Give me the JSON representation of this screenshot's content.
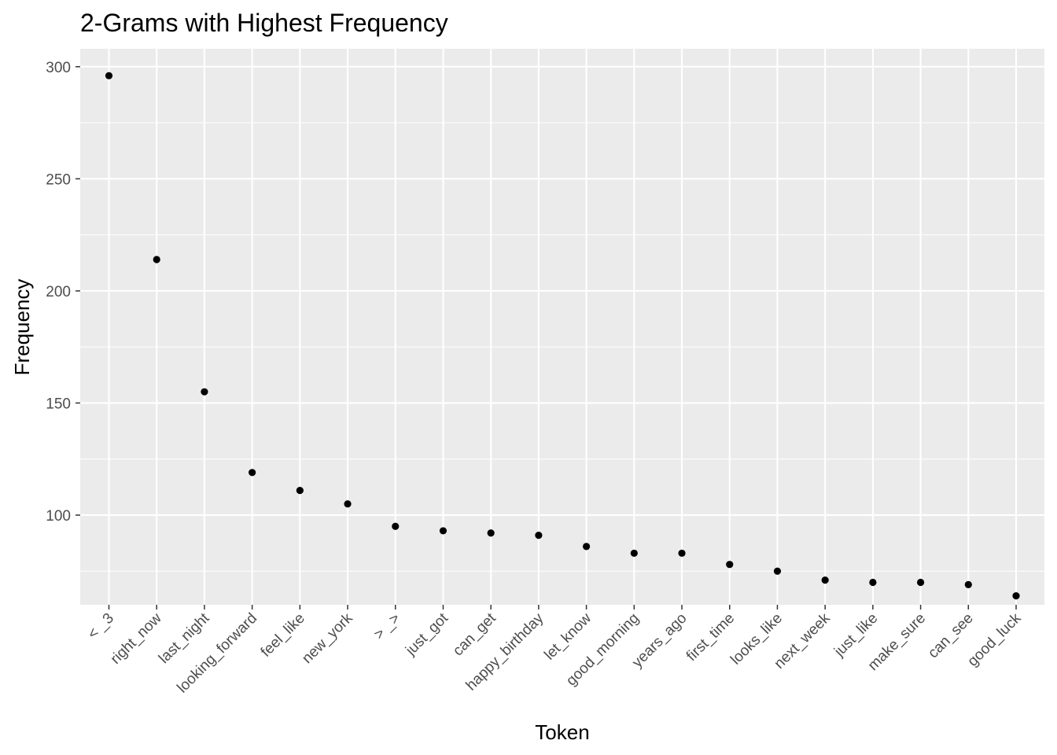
{
  "chart_data": {
    "type": "scatter",
    "title": "2-Grams with Highest Frequency",
    "xlabel": "Token",
    "ylabel": "Frequency",
    "categories": [
      "< _3",
      "right_now",
      "last_night",
      "looking_forward",
      "feel_like",
      "new_york",
      "> _>",
      "just_got",
      "can_get",
      "happy_birthday",
      "let_know",
      "good_morning",
      "years_ago",
      "first_time",
      "looks_like",
      "next_week",
      "just_like",
      "make_sure",
      "can_see",
      "good_luck"
    ],
    "values": [
      296,
      214,
      155,
      119,
      111,
      105,
      95,
      93,
      92,
      91,
      86,
      83,
      83,
      78,
      75,
      71,
      70,
      70,
      69,
      64
    ],
    "ylim": [
      60,
      308
    ],
    "yticks": [
      100,
      150,
      200,
      250,
      300
    ],
    "grid": true,
    "legend": "none",
    "colors": {
      "panel": "#ebebeb",
      "grid": "#ffffff",
      "point": "#000000",
      "tick_text": "#4d4d4d"
    }
  }
}
